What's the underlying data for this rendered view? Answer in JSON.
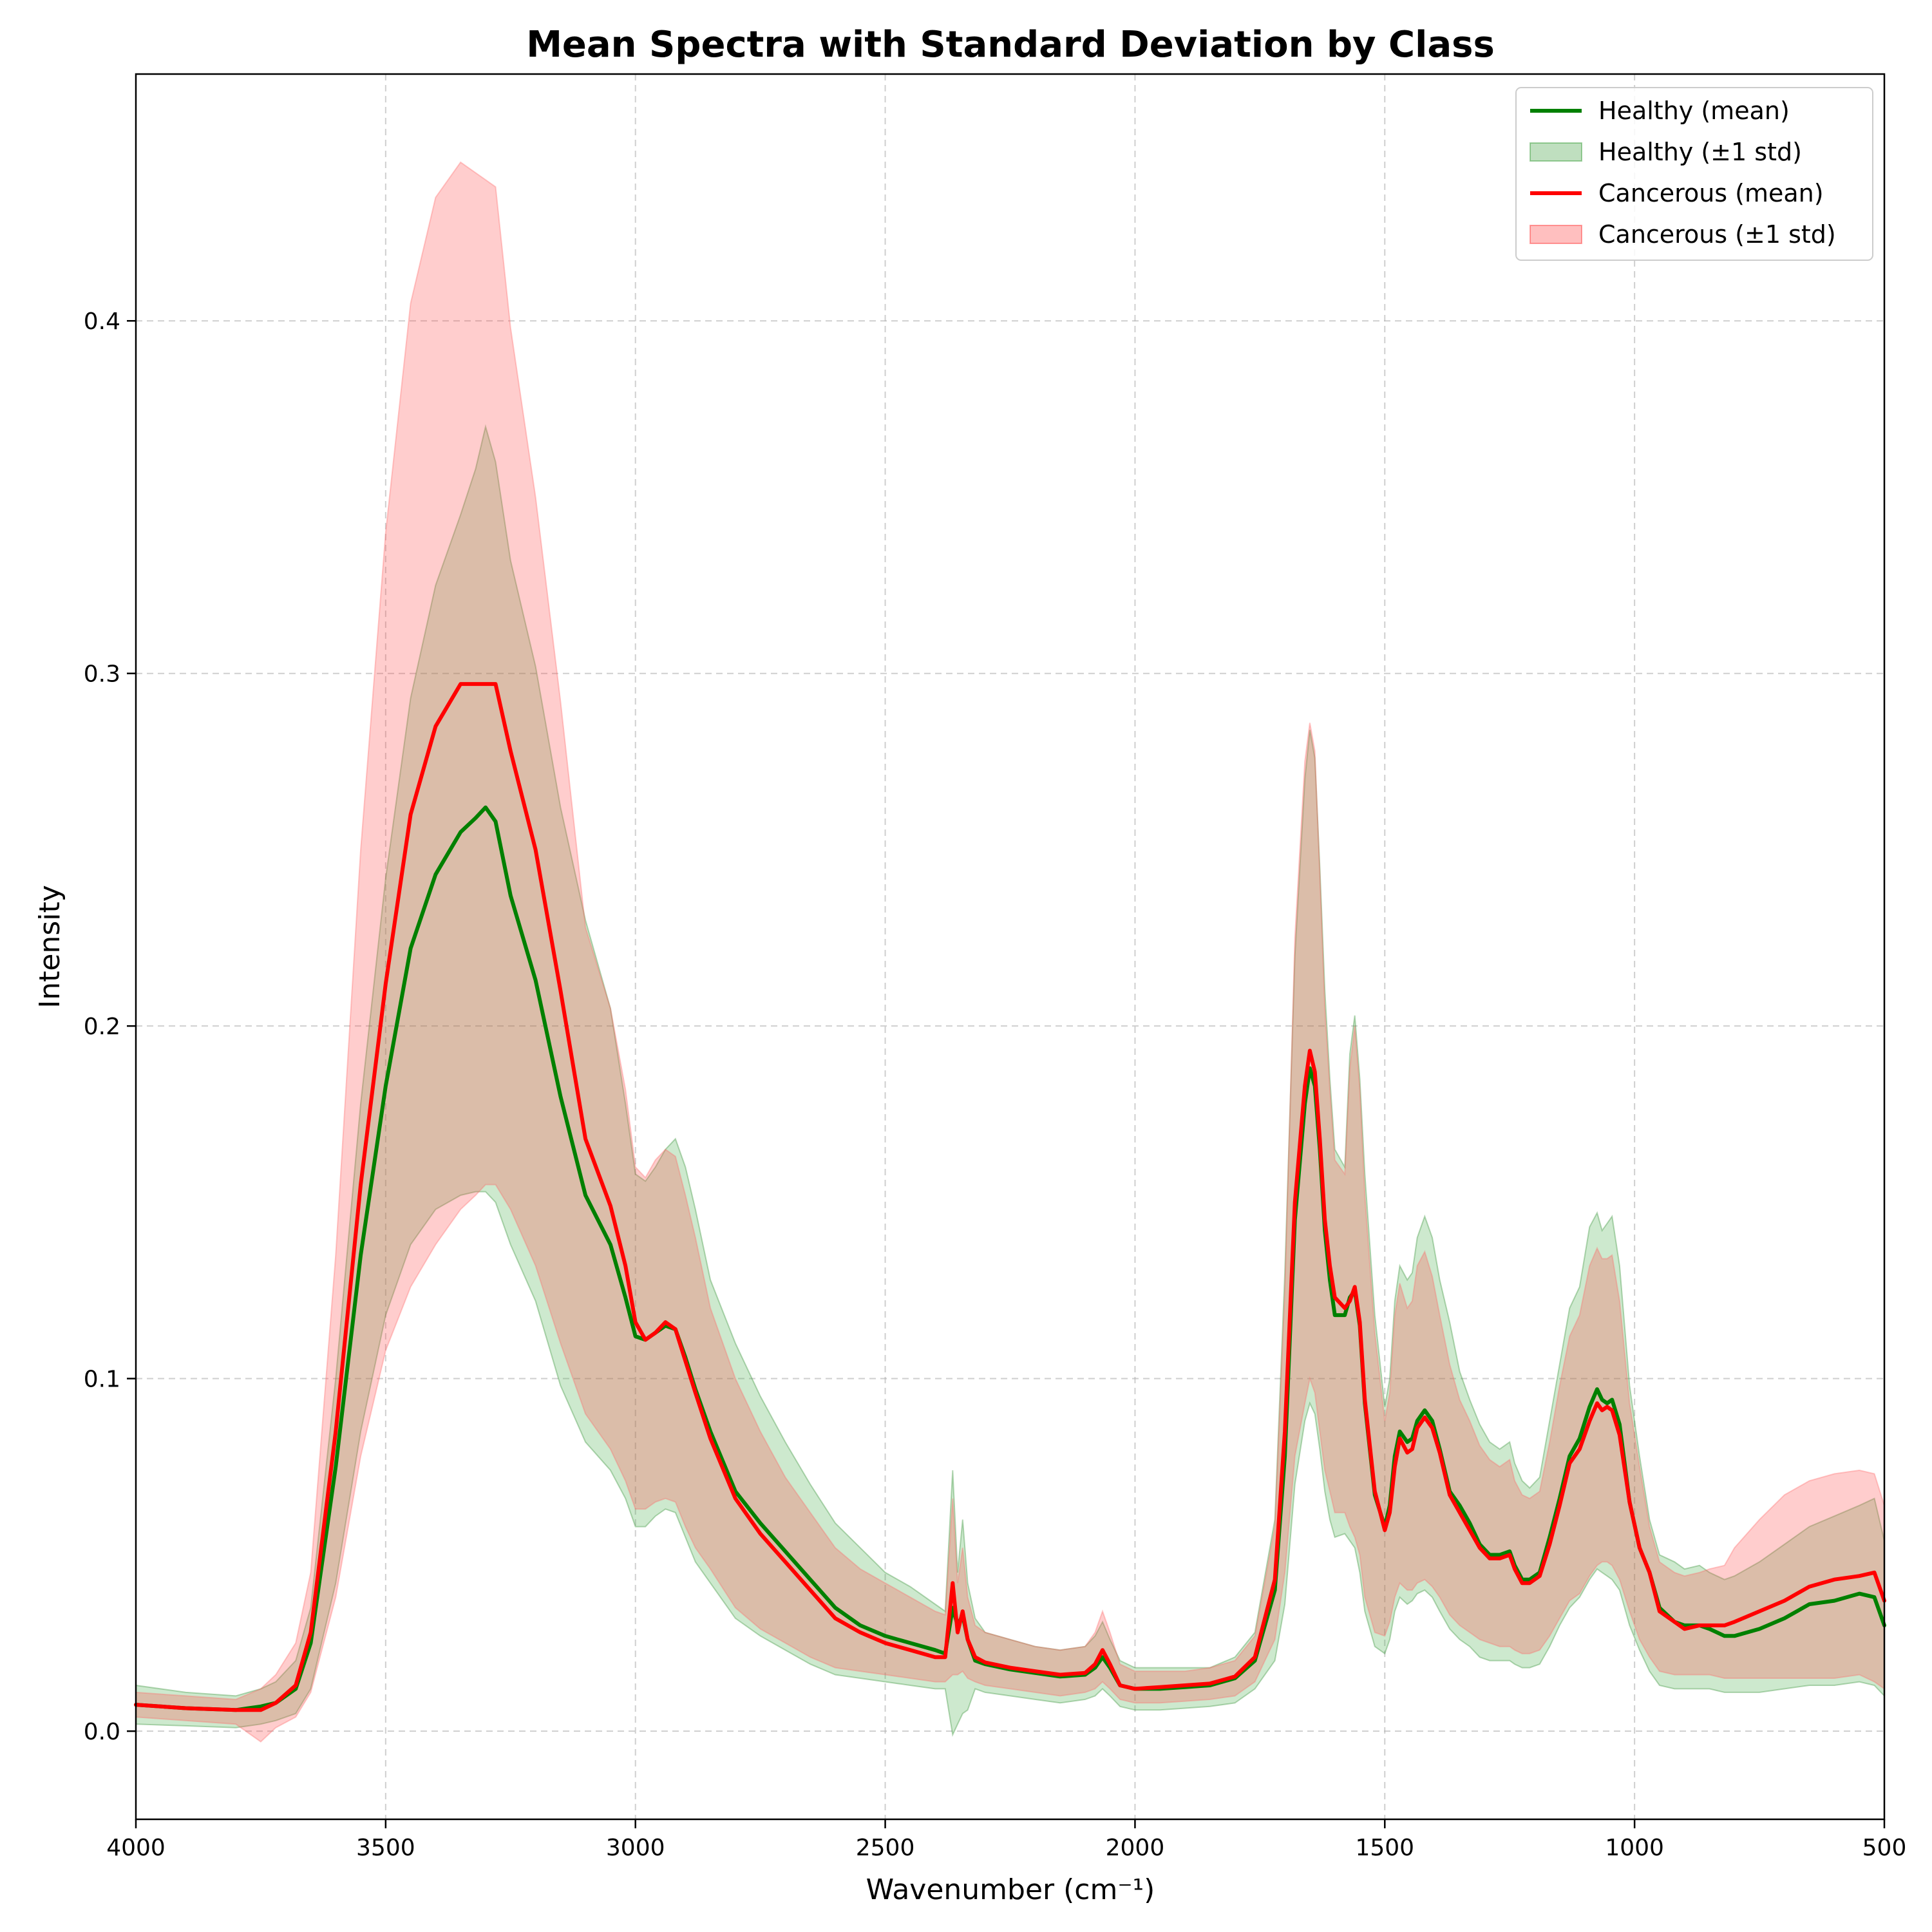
{
  "chart_data": {
    "type": "line",
    "title": "Mean Spectra with Standard Deviation by Class",
    "xlabel": "Wavenumber (cm⁻¹)",
    "ylabel": "Intensity",
    "xlim": [
      4000,
      500
    ],
    "ylim": [
      -0.025,
      0.47
    ],
    "x_inverted": true,
    "xticks": [
      4000,
      3500,
      3000,
      2500,
      2000,
      1500,
      1000,
      500
    ],
    "xtick_labels": [
      "4000",
      "3500",
      "3000",
      "2500",
      "2000",
      "1500",
      "1000",
      "500"
    ],
    "yticks": [
      0.0,
      0.1,
      0.2,
      0.3,
      0.4
    ],
    "ytick_labels": [
      "0.0",
      "0.1",
      "0.2",
      "0.3",
      "0.4"
    ],
    "grid": true,
    "legend_position": "top-right",
    "x": [
      4000,
      3900,
      3800,
      3750,
      3720,
      3680,
      3650,
      3600,
      3550,
      3500,
      3450,
      3400,
      3350,
      3320,
      3300,
      3280,
      3250,
      3200,
      3150,
      3100,
      3050,
      3020,
      3000,
      2980,
      2960,
      2940,
      2920,
      2900,
      2880,
      2850,
      2800,
      2750,
      2700,
      2650,
      2600,
      2550,
      2500,
      2450,
      2400,
      2380,
      2365,
      2355,
      2345,
      2335,
      2320,
      2300,
      2250,
      2200,
      2150,
      2100,
      2080,
      2065,
      2050,
      2030,
      2000,
      1950,
      1900,
      1850,
      1800,
      1760,
      1720,
      1700,
      1680,
      1660,
      1650,
      1640,
      1630,
      1620,
      1610,
      1600,
      1580,
      1570,
      1560,
      1550,
      1540,
      1520,
      1500,
      1490,
      1480,
      1470,
      1455,
      1445,
      1435,
      1420,
      1405,
      1390,
      1370,
      1350,
      1330,
      1310,
      1290,
      1270,
      1250,
      1240,
      1225,
      1210,
      1190,
      1170,
      1150,
      1130,
      1110,
      1090,
      1075,
      1065,
      1055,
      1045,
      1030,
      1010,
      990,
      970,
      950,
      920,
      900,
      870,
      850,
      820,
      800,
      750,
      700,
      650,
      600,
      550,
      520,
      500
    ],
    "series": [
      {
        "name": "Healthy (mean)",
        "color": "#008000",
        "values": [
          0.0075,
          0.0065,
          0.006,
          0.007,
          0.008,
          0.012,
          0.025,
          0.075,
          0.135,
          0.183,
          0.222,
          0.243,
          0.255,
          0.259,
          0.262,
          0.258,
          0.237,
          0.213,
          0.18,
          0.152,
          0.138,
          0.123,
          0.112,
          0.111,
          0.113,
          0.115,
          0.114,
          0.106,
          0.097,
          0.085,
          0.068,
          0.059,
          0.051,
          0.043,
          0.035,
          0.03,
          0.027,
          0.025,
          0.023,
          0.022,
          0.035,
          0.03,
          0.033,
          0.026,
          0.02,
          0.019,
          0.0175,
          0.0165,
          0.0155,
          0.016,
          0.018,
          0.021,
          0.018,
          0.013,
          0.012,
          0.012,
          0.0125,
          0.013,
          0.015,
          0.02,
          0.04,
          0.078,
          0.145,
          0.178,
          0.188,
          0.183,
          0.165,
          0.142,
          0.128,
          0.118,
          0.118,
          0.123,
          0.125,
          0.115,
          0.093,
          0.067,
          0.058,
          0.064,
          0.078,
          0.085,
          0.082,
          0.083,
          0.088,
          0.091,
          0.088,
          0.08,
          0.068,
          0.064,
          0.059,
          0.053,
          0.05,
          0.05,
          0.051,
          0.047,
          0.043,
          0.043,
          0.045,
          0.055,
          0.066,
          0.078,
          0.083,
          0.092,
          0.097,
          0.094,
          0.093,
          0.094,
          0.087,
          0.065,
          0.052,
          0.045,
          0.035,
          0.031,
          0.03,
          0.03,
          0.029,
          0.027,
          0.027,
          0.029,
          0.032,
          0.036,
          0.037,
          0.039,
          0.038,
          0.03
        ]
      },
      {
        "name": "Healthy (±1 std)",
        "color": "#008000",
        "band": true,
        "upper": [
          0.013,
          0.011,
          0.01,
          0.012,
          0.014,
          0.02,
          0.035,
          0.1,
          0.178,
          0.242,
          0.293,
          0.325,
          0.345,
          0.358,
          0.37,
          0.36,
          0.332,
          0.302,
          0.262,
          0.23,
          0.205,
          0.178,
          0.158,
          0.156,
          0.16,
          0.165,
          0.168,
          0.16,
          0.148,
          0.128,
          0.11,
          0.095,
          0.082,
          0.07,
          0.059,
          0.052,
          0.045,
          0.041,
          0.036,
          0.034,
          0.074,
          0.045,
          0.06,
          0.042,
          0.032,
          0.028,
          0.026,
          0.024,
          0.023,
          0.024,
          0.027,
          0.031,
          0.026,
          0.02,
          0.018,
          0.018,
          0.018,
          0.018,
          0.021,
          0.028,
          0.06,
          0.13,
          0.22,
          0.27,
          0.284,
          0.276,
          0.245,
          0.21,
          0.185,
          0.165,
          0.16,
          0.192,
          0.203,
          0.185,
          0.158,
          0.118,
          0.092,
          0.1,
          0.122,
          0.132,
          0.128,
          0.13,
          0.14,
          0.146,
          0.14,
          0.128,
          0.116,
          0.102,
          0.094,
          0.087,
          0.082,
          0.08,
          0.082,
          0.076,
          0.071,
          0.069,
          0.072,
          0.088,
          0.104,
          0.12,
          0.126,
          0.143,
          0.147,
          0.142,
          0.144,
          0.146,
          0.132,
          0.098,
          0.078,
          0.06,
          0.05,
          0.048,
          0.046,
          0.047,
          0.045,
          0.043,
          0.044,
          0.048,
          0.053,
          0.058,
          0.061,
          0.064,
          0.066,
          0.054
        ]
      },
      {
        "name": "Healthy (±1 std) lower",
        "color": "#008000",
        "values_lower": [
          0.002,
          0.0015,
          0.001,
          0.002,
          0.003,
          0.005,
          0.012,
          0.042,
          0.085,
          0.118,
          0.138,
          0.148,
          0.152,
          0.153,
          0.153,
          0.15,
          0.138,
          0.122,
          0.098,
          0.082,
          0.074,
          0.066,
          0.058,
          0.058,
          0.061,
          0.063,
          0.062,
          0.055,
          0.048,
          0.042,
          0.032,
          0.027,
          0.023,
          0.019,
          0.016,
          0.015,
          0.014,
          0.013,
          0.012,
          0.012,
          -0.001,
          0.002,
          0.005,
          0.006,
          0.012,
          0.011,
          0.01,
          0.009,
          0.008,
          0.009,
          0.01,
          0.012,
          0.01,
          0.007,
          0.006,
          0.006,
          0.0065,
          0.007,
          0.008,
          0.012,
          0.02,
          0.036,
          0.07,
          0.088,
          0.093,
          0.09,
          0.08,
          0.068,
          0.06,
          0.055,
          0.056,
          0.054,
          0.052,
          0.045,
          0.034,
          0.024,
          0.022,
          0.026,
          0.034,
          0.038,
          0.036,
          0.037,
          0.039,
          0.04,
          0.038,
          0.034,
          0.029,
          0.026,
          0.024,
          0.021,
          0.02,
          0.02,
          0.02,
          0.019,
          0.018,
          0.018,
          0.019,
          0.024,
          0.03,
          0.035,
          0.038,
          0.043,
          0.046,
          0.045,
          0.044,
          0.043,
          0.04,
          0.03,
          0.023,
          0.017,
          0.013,
          0.012,
          0.012,
          0.012,
          0.012,
          0.011,
          0.011,
          0.011,
          0.012,
          0.013,
          0.013,
          0.014,
          0.013,
          0.01
        ]
      },
      {
        "name": "Cancerous (mean)",
        "color": "#ff0000",
        "values": [
          0.0075,
          0.0065,
          0.006,
          0.006,
          0.008,
          0.013,
          0.028,
          0.085,
          0.155,
          0.212,
          0.26,
          0.285,
          0.297,
          0.297,
          0.297,
          0.297,
          0.278,
          0.25,
          0.21,
          0.168,
          0.149,
          0.132,
          0.116,
          0.111,
          0.113,
          0.116,
          0.114,
          0.105,
          0.096,
          0.083,
          0.066,
          0.056,
          0.048,
          0.04,
          0.032,
          0.028,
          0.025,
          0.023,
          0.021,
          0.021,
          0.042,
          0.028,
          0.034,
          0.026,
          0.021,
          0.0195,
          0.018,
          0.017,
          0.016,
          0.0165,
          0.019,
          0.023,
          0.019,
          0.013,
          0.012,
          0.0125,
          0.013,
          0.0135,
          0.0155,
          0.021,
          0.043,
          0.085,
          0.15,
          0.183,
          0.193,
          0.187,
          0.168,
          0.145,
          0.132,
          0.123,
          0.12,
          0.122,
          0.126,
          0.116,
          0.094,
          0.068,
          0.057,
          0.062,
          0.075,
          0.083,
          0.079,
          0.08,
          0.086,
          0.089,
          0.086,
          0.079,
          0.067,
          0.062,
          0.057,
          0.052,
          0.049,
          0.049,
          0.05,
          0.046,
          0.042,
          0.042,
          0.044,
          0.053,
          0.064,
          0.076,
          0.08,
          0.088,
          0.093,
          0.091,
          0.092,
          0.091,
          0.084,
          0.065,
          0.052,
          0.045,
          0.034,
          0.031,
          0.029,
          0.03,
          0.03,
          0.03,
          0.031,
          0.034,
          0.037,
          0.041,
          0.043,
          0.044,
          0.045,
          0.037
        ]
      },
      {
        "name": "Cancerous (±1 std)",
        "color": "#ff0000",
        "band": true,
        "upper": [
          0.011,
          0.01,
          0.009,
          0.012,
          0.016,
          0.025,
          0.045,
          0.135,
          0.25,
          0.34,
          0.405,
          0.435,
          0.445,
          0.442,
          0.44,
          0.438,
          0.398,
          0.35,
          0.292,
          0.228,
          0.205,
          0.182,
          0.16,
          0.157,
          0.162,
          0.165,
          0.163,
          0.152,
          0.14,
          0.12,
          0.1,
          0.085,
          0.072,
          0.062,
          0.052,
          0.046,
          0.042,
          0.038,
          0.034,
          0.033,
          0.066,
          0.042,
          0.052,
          0.038,
          0.03,
          0.028,
          0.026,
          0.024,
          0.023,
          0.024,
          0.028,
          0.034,
          0.028,
          0.019,
          0.017,
          0.017,
          0.017,
          0.018,
          0.02,
          0.027,
          0.058,
          0.125,
          0.225,
          0.275,
          0.286,
          0.278,
          0.243,
          0.205,
          0.182,
          0.162,
          0.158,
          0.188,
          0.2,
          0.182,
          0.152,
          0.113,
          0.088,
          0.096,
          0.118,
          0.127,
          0.12,
          0.122,
          0.132,
          0.136,
          0.129,
          0.118,
          0.104,
          0.094,
          0.088,
          0.081,
          0.077,
          0.075,
          0.077,
          0.071,
          0.067,
          0.066,
          0.068,
          0.082,
          0.098,
          0.112,
          0.118,
          0.132,
          0.137,
          0.134,
          0.134,
          0.135,
          0.122,
          0.093,
          0.075,
          0.058,
          0.048,
          0.045,
          0.044,
          0.045,
          0.046,
          0.047,
          0.052,
          0.06,
          0.067,
          0.071,
          0.073,
          0.074,
          0.073,
          0.064
        ]
      },
      {
        "name": "Cancerous (±1 std) lower",
        "color": "#ff0000",
        "values_lower": [
          0.004,
          0.003,
          0.002,
          -0.003,
          0.001,
          0.004,
          0.011,
          0.038,
          0.078,
          0.108,
          0.126,
          0.138,
          0.148,
          0.152,
          0.155,
          0.155,
          0.148,
          0.132,
          0.11,
          0.09,
          0.08,
          0.071,
          0.063,
          0.063,
          0.065,
          0.066,
          0.065,
          0.058,
          0.052,
          0.046,
          0.035,
          0.029,
          0.025,
          0.021,
          0.018,
          0.017,
          0.016,
          0.015,
          0.014,
          0.014,
          0.016,
          0.016,
          0.017,
          0.015,
          0.014,
          0.013,
          0.012,
          0.011,
          0.01,
          0.011,
          0.012,
          0.014,
          0.012,
          0.009,
          0.008,
          0.008,
          0.0085,
          0.009,
          0.01,
          0.014,
          0.026,
          0.045,
          0.078,
          0.093,
          0.1,
          0.096,
          0.085,
          0.074,
          0.068,
          0.062,
          0.062,
          0.058,
          0.055,
          0.05,
          0.038,
          0.028,
          0.027,
          0.031,
          0.038,
          0.042,
          0.04,
          0.04,
          0.042,
          0.043,
          0.041,
          0.038,
          0.033,
          0.03,
          0.028,
          0.026,
          0.025,
          0.024,
          0.024,
          0.023,
          0.022,
          0.022,
          0.023,
          0.027,
          0.032,
          0.037,
          0.039,
          0.044,
          0.047,
          0.048,
          0.048,
          0.047,
          0.043,
          0.034,
          0.026,
          0.021,
          0.017,
          0.016,
          0.016,
          0.016,
          0.016,
          0.015,
          0.015,
          0.015,
          0.015,
          0.015,
          0.015,
          0.016,
          0.014,
          0.012
        ]
      }
    ],
    "legend": [
      {
        "label": "Healthy (mean)",
        "kind": "line",
        "color": "#008000"
      },
      {
        "label": "Healthy (±1 std)",
        "kind": "band",
        "color": "#008000"
      },
      {
        "label": "Cancerous (mean)",
        "kind": "line",
        "color": "#ff0000"
      },
      {
        "label": "Cancerous (±1 std)",
        "kind": "band",
        "color": "#ff0000"
      }
    ]
  }
}
